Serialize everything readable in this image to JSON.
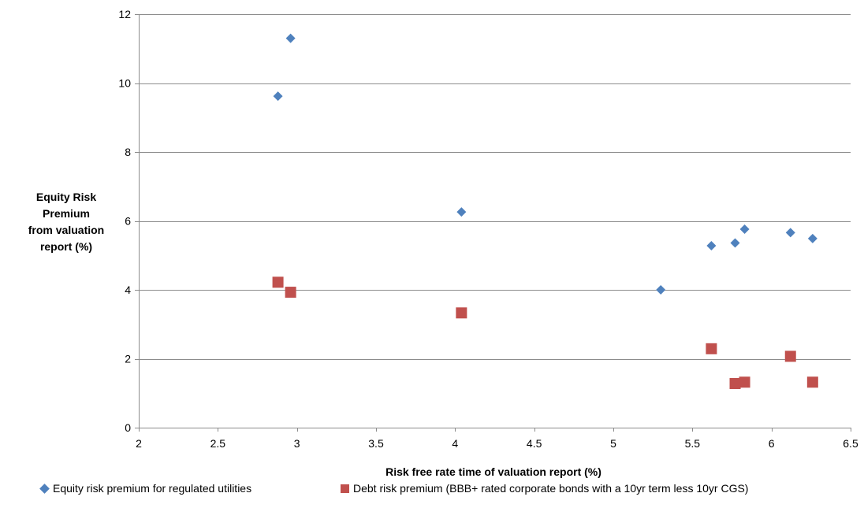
{
  "chart_data": {
    "type": "scatter",
    "title": "",
    "xlabel": "Risk free rate time of valuation report (%)",
    "ylabel": [
      "Equity Risk",
      "Premium",
      "from valuation",
      "report (%)"
    ],
    "xlim": [
      2,
      6.5
    ],
    "ylim": [
      0,
      12
    ],
    "x_ticks": [
      "2",
      "2.5",
      "3",
      "3.5",
      "4",
      "4.5",
      "5",
      "5.5",
      "6",
      "6.5"
    ],
    "y_ticks": [
      "0",
      "2",
      "4",
      "6",
      "8",
      "10",
      "12"
    ],
    "grid": "horizontal",
    "legend_position": "bottom",
    "series": [
      {
        "name": "Equity risk premium for regulated utilities",
        "marker": "diamond",
        "color": "#4f81bd",
        "points": [
          {
            "x": 2.88,
            "y": 9.62
          },
          {
            "x": 2.96,
            "y": 11.3
          },
          {
            "x": 4.04,
            "y": 6.26
          },
          {
            "x": 5.3,
            "y": 4.0
          },
          {
            "x": 5.62,
            "y": 5.28
          },
          {
            "x": 5.77,
            "y": 5.36
          },
          {
            "x": 5.83,
            "y": 5.76
          },
          {
            "x": 6.12,
            "y": 5.66
          },
          {
            "x": 6.26,
            "y": 5.49
          }
        ]
      },
      {
        "name": "Debt risk premium (BBB+ rated corporate bonds with a 10yr term less 10yr CGS)",
        "marker": "square",
        "color": "#c0504d",
        "points": [
          {
            "x": 2.88,
            "y": 4.22
          },
          {
            "x": 2.96,
            "y": 3.93
          },
          {
            "x": 4.04,
            "y": 3.33
          },
          {
            "x": 5.62,
            "y": 2.29
          },
          {
            "x": 5.77,
            "y": 1.28
          },
          {
            "x": 5.83,
            "y": 1.32
          },
          {
            "x": 6.12,
            "y": 2.07
          },
          {
            "x": 6.26,
            "y": 1.32
          }
        ]
      }
    ]
  }
}
